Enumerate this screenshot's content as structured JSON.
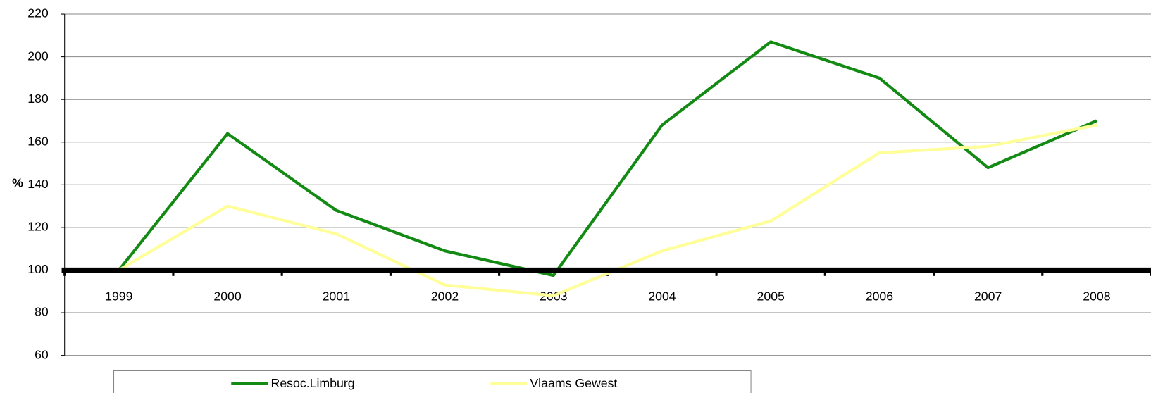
{
  "chart_data": {
    "type": "line",
    "y_label": "%",
    "categories": [
      "1999",
      "2000",
      "2001",
      "2002",
      "2003",
      "2004",
      "2005",
      "2006",
      "2007",
      "2008"
    ],
    "series": [
      {
        "name": "Resoc.Limburg",
        "color": "#138a13",
        "values": [
          100,
          164,
          128,
          109,
          97.5,
          168,
          207,
          190,
          148,
          170
        ]
      },
      {
        "name": "Vlaams Gewest",
        "color": "#ffff99",
        "values": [
          100,
          130,
          117,
          93,
          88,
          109,
          123,
          155,
          158,
          168
        ]
      }
    ],
    "ylim": [
      60,
      220
    ],
    "yticks": [
      60,
      80,
      100,
      120,
      140,
      160,
      180,
      200,
      220
    ],
    "x_axis_crosses": 100,
    "grid": true,
    "legend": "bottom"
  }
}
